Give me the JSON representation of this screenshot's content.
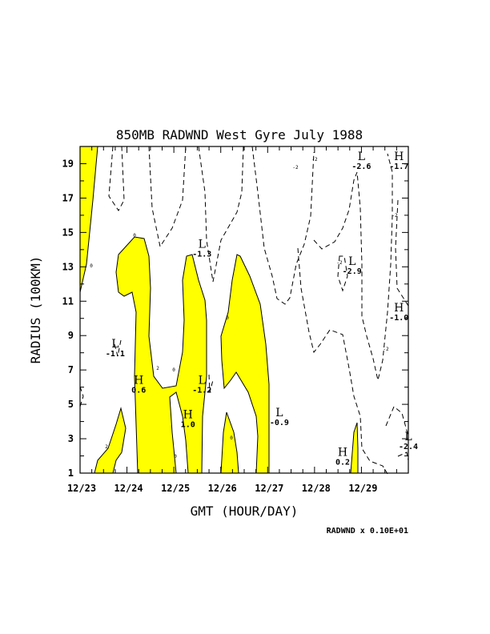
{
  "chart_data": {
    "type": "contour",
    "title": "850MB RADWND West Gyre July 1988",
    "xlabel": "GMT (HOUR/DAY)",
    "ylabel": "RADIUS (100KM)",
    "x_ticks": [
      "12/23",
      "12/24",
      "12/25",
      "12/26",
      "12/27",
      "12/28",
      "12/29"
    ],
    "y_ticks": [
      "1",
      "3",
      "5",
      "7",
      "9",
      "11",
      "13",
      "15",
      "17",
      "19"
    ],
    "ylim": [
      1,
      20
    ],
    "scale_note": "RADWND x  0.10E+01",
    "fill_color": "#ffff00",
    "fill_meaning": "positive radial wind regions shaded",
    "extrema": [
      {
        "type": "H",
        "value": "-1.7",
        "x": 6.8,
        "y": 19.2
      },
      {
        "type": "L",
        "value": "-2.6",
        "x": 6.0,
        "y": 19.2
      },
      {
        "type": "L",
        "value": "-1.3",
        "x": 2.6,
        "y": 14.1
      },
      {
        "type": "L",
        "value": "-2.9",
        "x": 5.8,
        "y": 13.1
      },
      {
        "type": "H",
        "value": "-1.0",
        "x": 6.8,
        "y": 10.4
      },
      {
        "type": "L",
        "value": "-1.1",
        "x": 0.75,
        "y": 8.3
      },
      {
        "type": "H",
        "value": "0.6",
        "x": 1.25,
        "y": 6.2
      },
      {
        "type": "L",
        "value": "-1.2",
        "x": 2.6,
        "y": 6.2
      },
      {
        "type": "H",
        "value": "1.0",
        "x": 2.3,
        "y": 4.2
      },
      {
        "type": "L",
        "value": "-0.9",
        "x": 4.25,
        "y": 4.3
      },
      {
        "type": "L",
        "value": "-2.4",
        "x": 7.0,
        "y": 2.9
      },
      {
        "type": "H",
        "value": "0.2",
        "x": 5.6,
        "y": 2.0
      }
    ],
    "contour_labels": [
      "0",
      "2",
      "0",
      "0",
      "0",
      "0",
      "0",
      "2",
      "-2",
      "-2",
      "-2",
      "-2",
      "-2"
    ]
  }
}
